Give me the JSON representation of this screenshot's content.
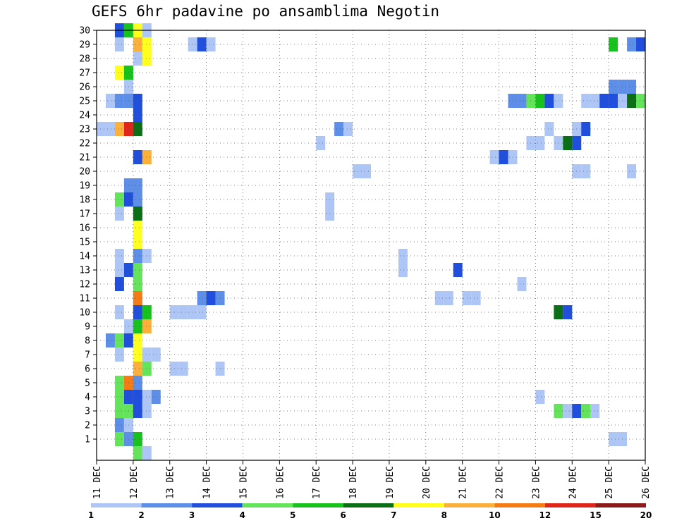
{
  "chart_data": {
    "type": "heatmap",
    "title": "GEFS 6hr padavine po ansamblima Negotin",
    "x_ticks": [
      "11 DEC",
      "12 DEC",
      "13 DEC",
      "14 DEC",
      "15 DEC",
      "16 DEC",
      "17 DEC",
      "18 DEC",
      "19 DEC",
      "20 DEC",
      "21 DEC",
      "22 DEC",
      "23 DEC",
      "24 DEC",
      "25 DEC",
      "26 DEC"
    ],
    "y_ticks": [
      1,
      2,
      3,
      4,
      5,
      6,
      7,
      8,
      9,
      10,
      11,
      12,
      13,
      14,
      15,
      16,
      17,
      18,
      19,
      20,
      21,
      22,
      23,
      24,
      25,
      26,
      27,
      28,
      29,
      30
    ],
    "x_range_days": [
      0,
      15
    ],
    "x_step_days": 0.25,
    "y_range": [
      0,
      30
    ],
    "grid": true,
    "legend_position": "bottom",
    "legend": {
      "labels": [
        "1",
        "2",
        "3",
        "4",
        "5",
        "6",
        "7",
        "8",
        "10",
        "12",
        "15",
        "20"
      ],
      "colors": [
        "#aec6f5",
        "#5d8ee8",
        "#1f4fdc",
        "#64e45a",
        "#16c21b",
        "#0b6f16",
        "#ffff1e",
        "#fbb03b",
        "#f57c14",
        "#e0261a",
        "#8b1a1a"
      ]
    },
    "cells": [
      {
        "d": 0.5,
        "m": 30,
        "c": 2
      },
      {
        "d": 0.75,
        "m": 30,
        "c": 4
      },
      {
        "d": 1,
        "m": 30,
        "c": 6
      },
      {
        "d": 1.25,
        "m": 30,
        "c": 0
      },
      {
        "d": 0.5,
        "m": 29,
        "c": 0
      },
      {
        "d": 1,
        "m": 29,
        "c": 7
      },
      {
        "d": 1.25,
        "m": 29,
        "c": 6
      },
      {
        "d": 2.5,
        "m": 29,
        "c": 0
      },
      {
        "d": 2.75,
        "m": 29,
        "c": 2
      },
      {
        "d": 3,
        "m": 29,
        "c": 0
      },
      {
        "d": 14,
        "m": 29,
        "c": 4
      },
      {
        "d": 14.5,
        "m": 29,
        "c": 1
      },
      {
        "d": 14.75,
        "m": 29,
        "c": 2
      },
      {
        "d": 1,
        "m": 28,
        "c": 0
      },
      {
        "d": 1.25,
        "m": 28,
        "c": 6
      },
      {
        "d": 0.5,
        "m": 27,
        "c": 6
      },
      {
        "d": 0.75,
        "m": 27,
        "c": 4
      },
      {
        "d": 0.75,
        "m": 26,
        "c": 0
      },
      {
        "d": 14,
        "m": 26,
        "c": 1
      },
      {
        "d": 14.25,
        "m": 26,
        "c": 1
      },
      {
        "d": 14.5,
        "m": 26,
        "c": 1
      },
      {
        "d": 0.25,
        "m": 25,
        "c": 0
      },
      {
        "d": 0.5,
        "m": 25,
        "c": 1
      },
      {
        "d": 0.75,
        "m": 25,
        "c": 1
      },
      {
        "d": 1,
        "m": 25,
        "c": 2
      },
      {
        "d": 11.25,
        "m": 25,
        "c": 1
      },
      {
        "d": 11.5,
        "m": 25,
        "c": 1
      },
      {
        "d": 11.75,
        "m": 25,
        "c": 3
      },
      {
        "d": 12,
        "m": 25,
        "c": 4
      },
      {
        "d": 12.25,
        "m": 25,
        "c": 2
      },
      {
        "d": 12.5,
        "m": 25,
        "c": 0
      },
      {
        "d": 13.25,
        "m": 25,
        "c": 0
      },
      {
        "d": 13.5,
        "m": 25,
        "c": 0
      },
      {
        "d": 13.75,
        "m": 25,
        "c": 2
      },
      {
        "d": 14,
        "m": 25,
        "c": 2
      },
      {
        "d": 14.25,
        "m": 25,
        "c": 0
      },
      {
        "d": 14.5,
        "m": 25,
        "c": 5
      },
      {
        "d": 14.75,
        "m": 25,
        "c": 3
      },
      {
        "d": 1,
        "m": 24,
        "c": 2
      },
      {
        "d": 0,
        "m": 23,
        "c": 0
      },
      {
        "d": 0.25,
        "m": 23,
        "c": 0
      },
      {
        "d": 0.5,
        "m": 23,
        "c": 7
      },
      {
        "d": 0.75,
        "m": 23,
        "c": 9
      },
      {
        "d": 1,
        "m": 23,
        "c": 5
      },
      {
        "d": 6.5,
        "m": 23,
        "c": 1
      },
      {
        "d": 6.75,
        "m": 23,
        "c": 0
      },
      {
        "d": 12.25,
        "m": 23,
        "c": 0
      },
      {
        "d": 13,
        "m": 23,
        "c": 0
      },
      {
        "d": 13.25,
        "m": 23,
        "c": 2
      },
      {
        "d": 6,
        "m": 22,
        "c": 0
      },
      {
        "d": 11.75,
        "m": 22,
        "c": 0
      },
      {
        "d": 12,
        "m": 22,
        "c": 0
      },
      {
        "d": 12.5,
        "m": 22,
        "c": 0
      },
      {
        "d": 12.75,
        "m": 22,
        "c": 5
      },
      {
        "d": 13,
        "m": 22,
        "c": 2
      },
      {
        "d": 1,
        "m": 21,
        "c": 2
      },
      {
        "d": 1.25,
        "m": 21,
        "c": 7
      },
      {
        "d": 10.75,
        "m": 21,
        "c": 0
      },
      {
        "d": 11,
        "m": 21,
        "c": 2
      },
      {
        "d": 11.25,
        "m": 21,
        "c": 0
      },
      {
        "d": 7,
        "m": 20,
        "c": 0
      },
      {
        "d": 7.25,
        "m": 20,
        "c": 0
      },
      {
        "d": 13,
        "m": 20,
        "c": 0
      },
      {
        "d": 13.25,
        "m": 20,
        "c": 0
      },
      {
        "d": 14.5,
        "m": 20,
        "c": 0
      },
      {
        "d": 0.75,
        "m": 19,
        "c": 1
      },
      {
        "d": 1,
        "m": 19,
        "c": 1
      },
      {
        "d": 0.5,
        "m": 18,
        "c": 3
      },
      {
        "d": 0.75,
        "m": 18,
        "c": 2
      },
      {
        "d": 1,
        "m": 18,
        "c": 1
      },
      {
        "d": 6.25,
        "m": 18,
        "c": 0
      },
      {
        "d": 6.25,
        "m": 17,
        "c": 0
      },
      {
        "d": 1,
        "m": 17,
        "c": 5
      },
      {
        "d": 0.5,
        "m": 17,
        "c": 0
      },
      {
        "d": 1,
        "m": 16,
        "c": 6
      },
      {
        "d": 1,
        "m": 15,
        "c": 6
      },
      {
        "d": 0.5,
        "m": 14,
        "c": 0
      },
      {
        "d": 1,
        "m": 14,
        "c": 1
      },
      {
        "d": 1.25,
        "m": 14,
        "c": 0
      },
      {
        "d": 8.25,
        "m": 14,
        "c": 0
      },
      {
        "d": 0.5,
        "m": 13,
        "c": 0
      },
      {
        "d": 0.75,
        "m": 13,
        "c": 2
      },
      {
        "d": 1,
        "m": 13,
        "c": 3
      },
      {
        "d": 8.25,
        "m": 13,
        "c": 0
      },
      {
        "d": 9.75,
        "m": 13,
        "c": 2
      },
      {
        "d": 0.5,
        "m": 12,
        "c": 2
      },
      {
        "d": 1,
        "m": 12,
        "c": 3
      },
      {
        "d": 11.5,
        "m": 12,
        "c": 0
      },
      {
        "d": 1,
        "m": 11,
        "c": 8
      },
      {
        "d": 2.75,
        "m": 11,
        "c": 1
      },
      {
        "d": 3,
        "m": 11,
        "c": 2
      },
      {
        "d": 3.25,
        "m": 11,
        "c": 1
      },
      {
        "d": 9.25,
        "m": 11,
        "c": 0
      },
      {
        "d": 9.5,
        "m": 11,
        "c": 0
      },
      {
        "d": 10,
        "m": 11,
        "c": 0
      },
      {
        "d": 10.25,
        "m": 11,
        "c": 0
      },
      {
        "d": 0.5,
        "m": 10,
        "c": 0
      },
      {
        "d": 1,
        "m": 10,
        "c": 2
      },
      {
        "d": 1.25,
        "m": 10,
        "c": 4
      },
      {
        "d": 2,
        "m": 10,
        "c": 0
      },
      {
        "d": 2.25,
        "m": 10,
        "c": 0
      },
      {
        "d": 2.5,
        "m": 10,
        "c": 0
      },
      {
        "d": 2.75,
        "m": 10,
        "c": 0
      },
      {
        "d": 12.5,
        "m": 10,
        "c": 5
      },
      {
        "d": 12.75,
        "m": 10,
        "c": 2
      },
      {
        "d": 0.75,
        "m": 9,
        "c": 0
      },
      {
        "d": 1,
        "m": 9,
        "c": 4
      },
      {
        "d": 1.25,
        "m": 9,
        "c": 7
      },
      {
        "d": 0.25,
        "m": 8,
        "c": 1
      },
      {
        "d": 0.5,
        "m": 8,
        "c": 3
      },
      {
        "d": 0.75,
        "m": 8,
        "c": 2
      },
      {
        "d": 1,
        "m": 8,
        "c": 6
      },
      {
        "d": 0.5,
        "m": 7,
        "c": 0
      },
      {
        "d": 1,
        "m": 7,
        "c": 6
      },
      {
        "d": 1.25,
        "m": 7,
        "c": 0
      },
      {
        "d": 1.5,
        "m": 7,
        "c": 0
      },
      {
        "d": 1,
        "m": 6,
        "c": 7
      },
      {
        "d": 1.25,
        "m": 6,
        "c": 3
      },
      {
        "d": 2,
        "m": 6,
        "c": 0
      },
      {
        "d": 2.25,
        "m": 6,
        "c": 0
      },
      {
        "d": 3.25,
        "m": 6,
        "c": 0
      },
      {
        "d": 0.5,
        "m": 5,
        "c": 3
      },
      {
        "d": 0.75,
        "m": 5,
        "c": 8
      },
      {
        "d": 1,
        "m": 5,
        "c": 1
      },
      {
        "d": 0.5,
        "m": 4,
        "c": 3
      },
      {
        "d": 0.75,
        "m": 4,
        "c": 2
      },
      {
        "d": 1,
        "m": 4,
        "c": 2
      },
      {
        "d": 1.25,
        "m": 4,
        "c": 0
      },
      {
        "d": 1.5,
        "m": 4,
        "c": 1
      },
      {
        "d": 12,
        "m": 4,
        "c": 0
      },
      {
        "d": 0.5,
        "m": 3,
        "c": 3
      },
      {
        "d": 0.75,
        "m": 3,
        "c": 3
      },
      {
        "d": 1,
        "m": 3,
        "c": 2
      },
      {
        "d": 1.25,
        "m": 3,
        "c": 0
      },
      {
        "d": 12.5,
        "m": 3,
        "c": 3
      },
      {
        "d": 12.75,
        "m": 3,
        "c": 0
      },
      {
        "d": 13,
        "m": 3,
        "c": 2
      },
      {
        "d": 13.25,
        "m": 3,
        "c": 3
      },
      {
        "d": 13.5,
        "m": 3,
        "c": 0
      },
      {
        "d": 0.5,
        "m": 2,
        "c": 1
      },
      {
        "d": 0.75,
        "m": 2,
        "c": 0
      },
      {
        "d": 0.5,
        "m": 1,
        "c": 3
      },
      {
        "d": 0.75,
        "m": 1,
        "c": 1
      },
      {
        "d": 1,
        "m": 1,
        "c": 4
      },
      {
        "d": 14,
        "m": 1,
        "c": 0
      },
      {
        "d": 14.25,
        "m": 1,
        "c": 0
      },
      {
        "d": 1,
        "m": 0,
        "c": 3
      },
      {
        "d": 1.25,
        "m": 0,
        "c": 0
      }
    ]
  }
}
